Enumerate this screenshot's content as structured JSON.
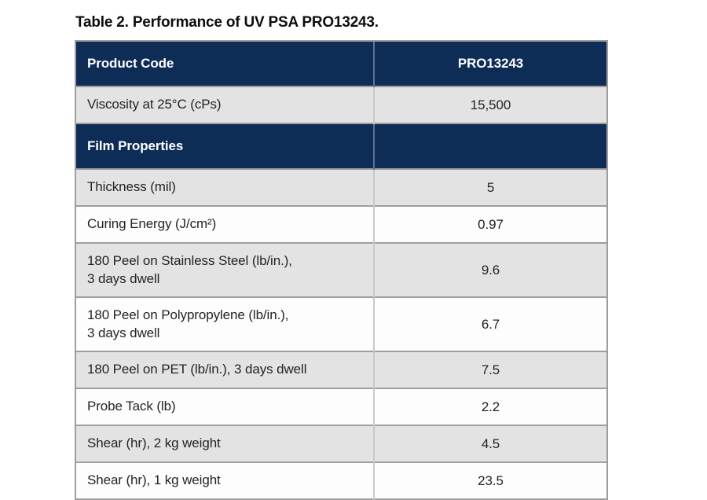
{
  "title": "Table 2. Performance of UV PSA PRO13243.",
  "colors": {
    "header_navy": "#0d2c56",
    "row_gray": "#e3e3e3",
    "row_white": "#fdfdfd",
    "border_gray": "#9e9e9e",
    "header_text": "#ffffff",
    "body_text": "#242424"
  },
  "table": {
    "header": {
      "label": "Product Code",
      "value": "PRO13243"
    },
    "rows": [
      {
        "label": "Viscosity at 25°C (cPs)",
        "value": "15,500"
      },
      {
        "label": "Film Properties",
        "value": ""
      },
      {
        "label": "Thickness (mil)",
        "value": "5"
      },
      {
        "label": "Curing Energy (J/cm²)",
        "value": "0.97"
      },
      {
        "label": "180 Peel on Stainless Steel (lb/in.),\n3 days dwell",
        "value": "9.6"
      },
      {
        "label": "180 Peel on Polypropylene (lb/in.),\n3 days dwell",
        "value": "6.7"
      },
      {
        "label": "180 Peel on PET (lb/in.), 3 days dwell",
        "value": "7.5"
      },
      {
        "label": "Probe Tack (lb)",
        "value": "2.2"
      },
      {
        "label": "Shear (hr), 2 kg weight",
        "value": "4.5"
      },
      {
        "label": "Shear (hr), 1 kg weight",
        "value": "23.5"
      }
    ]
  }
}
